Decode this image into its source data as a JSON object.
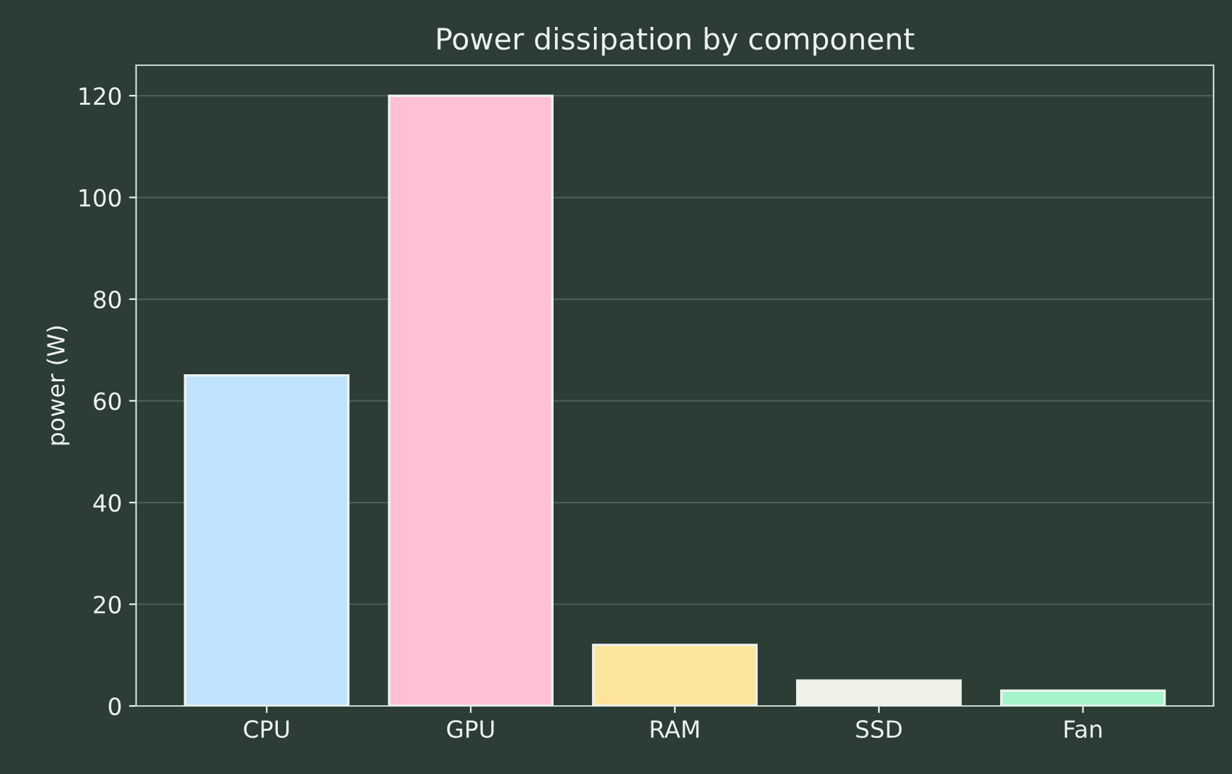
{
  "chart_data": {
    "type": "bar",
    "title": "Power dissipation by component",
    "ylabel": "power (W)",
    "categories": [
      "CPU",
      "GPU",
      "RAM",
      "SSD",
      "Fan"
    ],
    "values": [
      65,
      120,
      12,
      5,
      3
    ],
    "colors": [
      "#bfe3ff",
      "#ffc0d3",
      "#fde49c",
      "#f1f1e8",
      "#a5f5cb"
    ],
    "ylim": [
      0,
      126
    ],
    "yticks": [
      0,
      20,
      40,
      60,
      80,
      100,
      120
    ],
    "grid": "y",
    "legend": false
  }
}
